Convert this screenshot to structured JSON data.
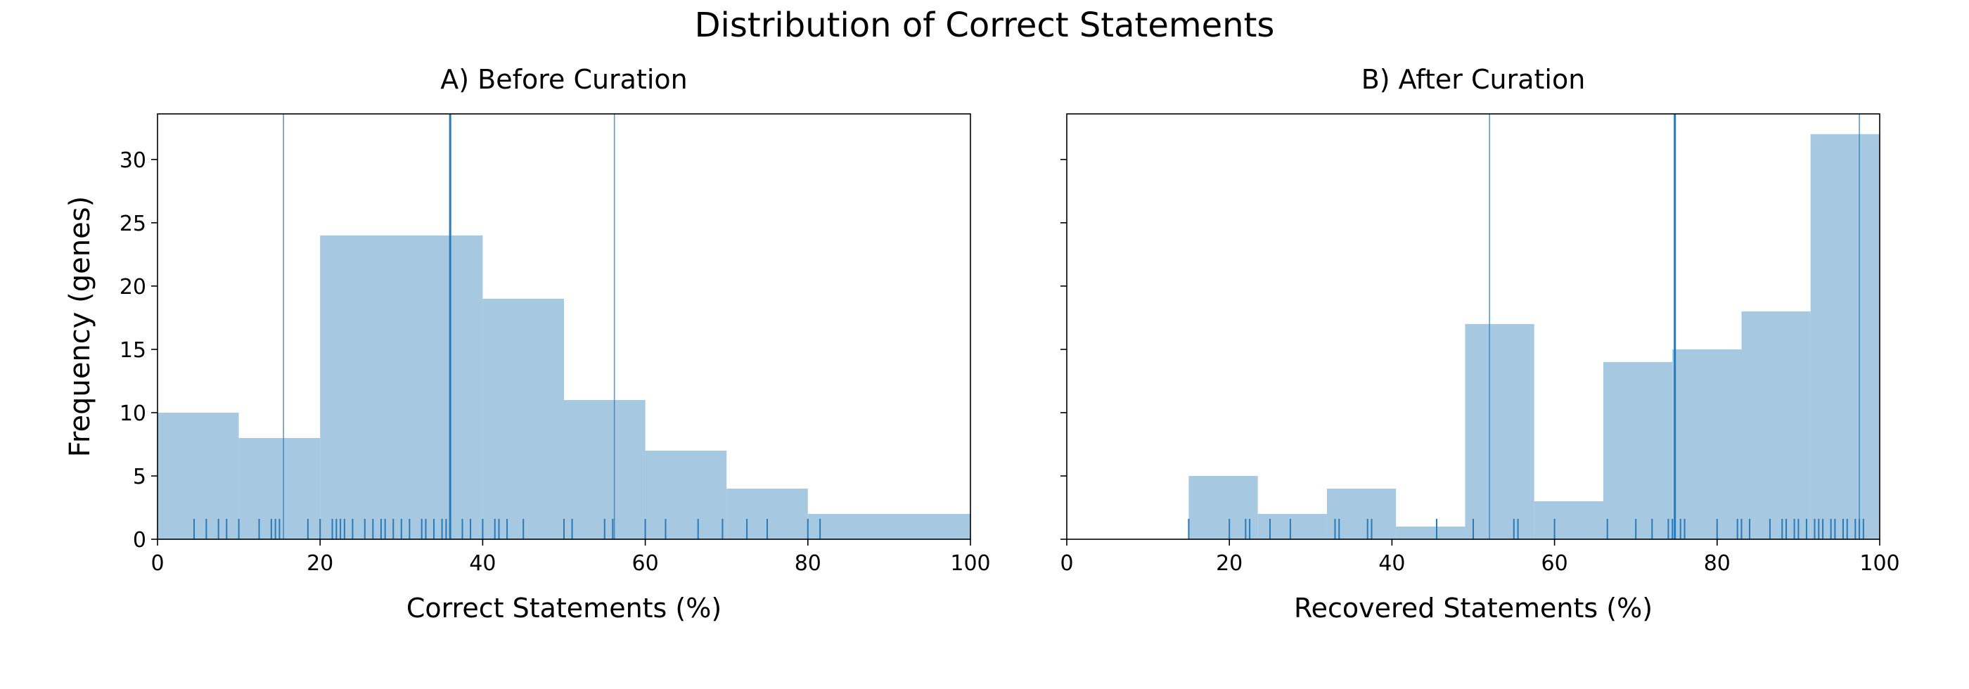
{
  "figure": {
    "title": "Distribution of Correct Statements"
  },
  "colors": {
    "bar_fill": "#a6c8e0",
    "rug_and_lines": "#2a7ab8",
    "axis": "#000000"
  },
  "chart_data": [
    {
      "type": "bar",
      "title": "A) Before Curation",
      "xlabel": "Correct Statements (%)",
      "ylabel": "Frequency (genes)",
      "xlim": [
        0,
        100
      ],
      "ylim": [
        0,
        33.6
      ],
      "xticks": [
        0,
        20,
        40,
        60,
        80,
        100
      ],
      "yticks": [
        0,
        5,
        10,
        15,
        20,
        25,
        30
      ],
      "bins": [
        {
          "x0": 0,
          "x1": 10,
          "value": 10
        },
        {
          "x0": 10,
          "x1": 20,
          "value": 8
        },
        {
          "x0": 20,
          "x1": 40,
          "value": 24
        },
        {
          "x0": 40,
          "x1": 50,
          "value": 19
        },
        {
          "x0": 50,
          "x1": 60,
          "value": 11
        },
        {
          "x0": 60,
          "x1": 70,
          "value": 7
        },
        {
          "x0": 70,
          "x1": 80,
          "value": 4
        },
        {
          "x0": 80,
          "x1": 100,
          "value": 2
        }
      ],
      "vlines": [
        {
          "x": 15.5,
          "style": "thin"
        },
        {
          "x": 36,
          "style": "bold"
        },
        {
          "x": 56.2,
          "style": "thin"
        }
      ],
      "rug": [
        4.5,
        6,
        7.5,
        8.5,
        10,
        12.5,
        14,
        14.5,
        15,
        18.5,
        20,
        21.5,
        22,
        22.5,
        23,
        24,
        25.5,
        26.5,
        27.5,
        28,
        29,
        30,
        31,
        32.5,
        33,
        34,
        35,
        35.5,
        36,
        37.5,
        38.5,
        40,
        41.5,
        42,
        43,
        45,
        50,
        51,
        55,
        56,
        60,
        62.5,
        66.5,
        69.5,
        72.5,
        75,
        80,
        81.5
      ]
    },
    {
      "type": "bar",
      "title": "B) After Curation",
      "xlabel": "Recovered Statements (%)",
      "ylabel": "",
      "xlim": [
        0,
        100
      ],
      "ylim": [
        0,
        33.6
      ],
      "xticks": [
        0,
        20,
        40,
        60,
        80,
        100
      ],
      "yticks": [
        0,
        5,
        10,
        15,
        20,
        25,
        30
      ],
      "bins": [
        {
          "x0": 15,
          "x1": 23.5,
          "value": 5
        },
        {
          "x0": 23.5,
          "x1": 32,
          "value": 2
        },
        {
          "x0": 32,
          "x1": 40.5,
          "value": 4
        },
        {
          "x0": 40.5,
          "x1": 49,
          "value": 1
        },
        {
          "x0": 49,
          "x1": 57.5,
          "value": 17
        },
        {
          "x0": 57.5,
          "x1": 66,
          "value": 3
        },
        {
          "x0": 66,
          "x1": 74.5,
          "value": 14
        },
        {
          "x0": 74.5,
          "x1": 83,
          "value": 15
        },
        {
          "x0": 83,
          "x1": 91.5,
          "value": 18
        },
        {
          "x0": 91.5,
          "x1": 100,
          "value": 32
        }
      ],
      "vlines": [
        {
          "x": 52,
          "style": "thin"
        },
        {
          "x": 74.8,
          "style": "bold"
        },
        {
          "x": 97.5,
          "style": "thin"
        }
      ],
      "rug": [
        15,
        20,
        22,
        22.5,
        25,
        27.5,
        33,
        33.5,
        37,
        37.5,
        45.5,
        50,
        55,
        55.5,
        60,
        66.5,
        70,
        72,
        74,
        74.5,
        75.5,
        76,
        80,
        82.5,
        83,
        84,
        86.5,
        88,
        88.5,
        89.5,
        90,
        91,
        92,
        92.5,
        93,
        94,
        94.5,
        95.5,
        96,
        97,
        97.5,
        98
      ]
    }
  ]
}
